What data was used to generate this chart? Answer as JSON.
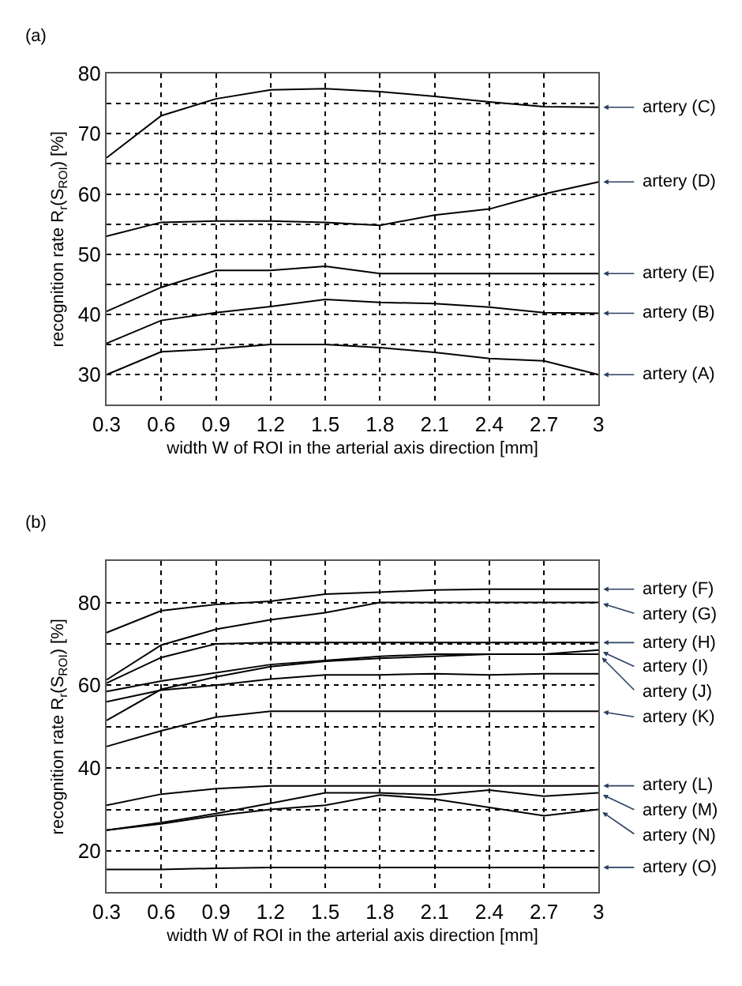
{
  "chart_data": [
    {
      "type": "line",
      "title": "(a)",
      "xlabel": "width W of ROI in the arterial axis direction [mm]",
      "ylabel": "recognition rate R$_{r}$(S$_{ROI}$) [%]",
      "x": [
        0.3,
        0.6,
        0.9,
        1.2,
        1.5,
        1.8,
        2.1,
        2.4,
        2.7,
        3
      ],
      "xlim": [
        0.3,
        3
      ],
      "xticks": [
        0.3,
        0.6,
        0.9,
        1.2,
        1.5,
        1.8,
        2.1,
        2.4,
        2.7,
        3
      ],
      "ylim": [
        25,
        80
      ],
      "yticks": [
        {
          "value": 25,
          "label": null
        },
        30,
        {
          "value": 35,
          "label": null
        },
        40,
        {
          "value": 45,
          "label": null
        },
        50,
        {
          "value": 55,
          "label": null
        },
        60,
        {
          "value": 65,
          "label": null
        },
        70,
        {
          "value": 75,
          "label": null
        },
        80
      ],
      "grid": true,
      "legend": false,
      "marker": "none",
      "line_style": "solid",
      "series": [
        {
          "name": "artery (C)",
          "color": "#000000",
          "values": [
            66,
            73,
            75.8,
            77.3,
            77.5,
            77,
            76.2,
            75.3,
            74.5,
            74.4
          ]
        },
        {
          "name": "artery (D)",
          "color": "#000000",
          "values": [
            53,
            55.3,
            55.5,
            55.5,
            55.3,
            54.8,
            56.5,
            57.5,
            60,
            62
          ]
        },
        {
          "name": "artery (E)",
          "color": "#000000",
          "values": [
            40.5,
            44.5,
            47.3,
            47.3,
            48,
            46.8,
            46.8,
            46.8,
            46.8,
            46.8
          ]
        },
        {
          "name": "artery (B)",
          "color": "#000000",
          "values": [
            35.2,
            39,
            40.3,
            41.3,
            42.5,
            42,
            41.8,
            41.2,
            40.3,
            40.2
          ]
        },
        {
          "name": "artery (A)",
          "color": "#000000",
          "values": [
            30,
            33.8,
            34.3,
            35,
            35,
            34.5,
            33.7,
            32.7,
            32.3,
            30
          ]
        }
      ]
    },
    {
      "type": "line",
      "title": "(b)",
      "xlabel": "width W of ROI in the arterial axis direction [mm]",
      "ylabel": "recognition rate R$_{r}$(S$_{ROI}$) [%]",
      "x": [
        0.3,
        0.6,
        0.9,
        1.2,
        1.5,
        1.8,
        2.1,
        2.4,
        2.7,
        3
      ],
      "xlim": [
        0.3,
        3
      ],
      "xticks": [
        0.3,
        0.6,
        0.9,
        1.2,
        1.5,
        1.8,
        2.1,
        2.4,
        2.7,
        3
      ],
      "ylim": [
        10,
        90
      ],
      "yticks": [
        20,
        {
          "value": 30,
          "label": null
        },
        40,
        {
          "value": 50,
          "label": null
        },
        60,
        {
          "value": 70,
          "label": null
        },
        80
      ],
      "grid": true,
      "legend": false,
      "marker": "none",
      "line_style": "solid",
      "series": [
        {
          "name": "artery (F)",
          "color": "#000000",
          "values": [
            72.7,
            78,
            79.5,
            80.3,
            82,
            82.5,
            83,
            83.2,
            83.2,
            83.2
          ]
        },
        {
          "name": "artery (G)",
          "color": "#000000",
          "values": [
            61.3,
            69.7,
            73.5,
            75.8,
            77.5,
            80,
            80,
            80,
            80,
            80
          ]
        },
        {
          "name": "artery (H)",
          "color": "#000000",
          "values": [
            60.5,
            66.7,
            70,
            70.3,
            70.3,
            70.3,
            70.3,
            70.3,
            70.3,
            70.3
          ]
        },
        {
          "name": "artery (I)",
          "color": "#000000",
          "values": [
            58.5,
            61,
            63,
            65,
            66,
            67,
            67.5,
            67.5,
            67.5,
            68.5
          ]
        },
        {
          "name": "artery (J)",
          "color": "#000000",
          "values": [
            51.5,
            59,
            62,
            64.5,
            65.8,
            66.5,
            67,
            67.5,
            67.5,
            67.5
          ]
        },
        {
          "color": "#000000",
          "values": [
            56,
            58.8,
            60,
            61.5,
            62.5,
            62.5,
            62.8,
            62.5,
            62.8,
            62.8
          ]
        },
        {
          "name": "artery (K)",
          "color": "#000000",
          "values": [
            45.2,
            49,
            52.3,
            53.7,
            53.7,
            53.7,
            53.7,
            53.7,
            53.7,
            53.7
          ]
        },
        {
          "name": "artery (L)",
          "color": "#000000",
          "values": [
            31,
            33.7,
            35,
            35.7,
            35.7,
            35.7,
            35.7,
            35.7,
            35.7,
            35.7
          ]
        },
        {
          "name": "artery (M)",
          "color": "#000000",
          "values": [
            25,
            26.8,
            29,
            31.5,
            34,
            34,
            33.5,
            34.7,
            33.2,
            34
          ]
        },
        {
          "name": "artery (N)",
          "color": "#000000",
          "values": [
            25,
            26.5,
            28.5,
            30,
            31,
            33.5,
            32.5,
            30.5,
            28.5,
            30
          ]
        },
        {
          "name": "artery (O)",
          "color": "#000000",
          "values": [
            15.5,
            15.5,
            15.8,
            16,
            16,
            16,
            16,
            16,
            16,
            16
          ]
        }
      ]
    }
  ]
}
